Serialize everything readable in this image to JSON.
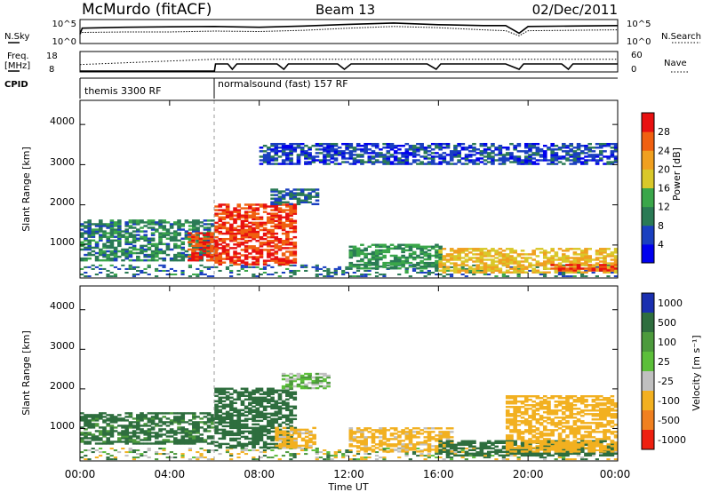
{
  "header": {
    "station": "McMurdo (fitACF)",
    "beam": "Beam 13",
    "date": "02/Dec/2011"
  },
  "noise_panel": {
    "left_label": "N.Sky",
    "left_ticks": [
      "10^5",
      "10^0"
    ],
    "right_label": "N.Search",
    "right_ticks": [
      "10^5",
      "10^0"
    ]
  },
  "freq_panel": {
    "left_label_1": "Freq.",
    "left_label_2": "[MHz]",
    "left_ticks": [
      "18",
      "8"
    ],
    "right_label": "Nave",
    "right_ticks": [
      "60",
      "0"
    ]
  },
  "cpid_panel": {
    "label": "CPID",
    "segments": [
      {
        "name": "themis 3300 RF",
        "start_hour": 0
      },
      {
        "name": "normalsound (fast) 157 RF",
        "start_hour": 6
      }
    ]
  },
  "power_panel": {
    "ylabel": "Slant Range [km]",
    "yticks": [
      "4000",
      "3000",
      "2000",
      "1000"
    ],
    "colorbar_label": "Power [dB]",
    "colorbar_ticks": [
      "28",
      "24",
      "20",
      "16",
      "12",
      "8",
      "4"
    ]
  },
  "velocity_panel": {
    "ylabel": "Slant Range [km]",
    "yticks": [
      "4000",
      "3000",
      "2000",
      "1000"
    ],
    "colorbar_label": "Velocity [m s⁻¹]",
    "colorbar_ticks": [
      "1000",
      "500",
      "100",
      "25",
      "-25",
      "-100",
      "-500",
      "-1000"
    ]
  },
  "x_axis": {
    "label": "Time UT",
    "ticks": [
      "00:00",
      "04:00",
      "08:00",
      "12:00",
      "16:00",
      "20:00",
      "00:00"
    ]
  },
  "colors": {
    "power_scale": [
      "#0000ee",
      "#1a3fc0",
      "#2a7a55",
      "#3aa64a",
      "#d9c82a",
      "#f0a020",
      "#f06010",
      "#e81010"
    ],
    "velocity_scale": [
      "#1a2fb0",
      "#2e6e3e",
      "#4c9a3c",
      "#5cbf3a",
      "#c0c0c0",
      "#f2b020",
      "#f08020",
      "#ee2010"
    ]
  },
  "chart_data": [
    {
      "type": "line",
      "title": "N.Sky / N.Search",
      "x_range_hours": [
        0,
        24
      ],
      "series": [
        {
          "name": "N.Sky",
          "x": [
            0,
            0.1,
            2,
            4,
            6,
            8,
            10,
            12,
            14,
            16,
            18,
            19,
            19.6,
            20,
            22,
            24
          ],
          "values": [
            2.0,
            3.4,
            3.6,
            3.7,
            3.8,
            3.6,
            3.9,
            4.3,
            4.6,
            4.2,
            4.0,
            4.0,
            2.2,
            3.8,
            3.9,
            4.0
          ]
        },
        {
          "name": "N.Search",
          "x": [
            0,
            0.1,
            2,
            4,
            6,
            8,
            10,
            12,
            14,
            16,
            18,
            19,
            19.6,
            20,
            22,
            24
          ],
          "values": [
            2.0,
            2.4,
            2.5,
            2.5,
            2.7,
            2.6,
            2.9,
            3.4,
            3.8,
            3.5,
            3.0,
            2.8,
            1.6,
            2.8,
            2.9,
            3.0
          ]
        }
      ]
    },
    {
      "type": "line",
      "title": "Freq / Nave",
      "x_range_hours": [
        0,
        24
      ],
      "series": [
        {
          "name": "Freq",
          "x": [
            0,
            6,
            6.05,
            6.6,
            6.8,
            7.0,
            8.8,
            9.1,
            9.3,
            11.5,
            11.8,
            12.1,
            15.5,
            15.9,
            16.1,
            19.0,
            19.6,
            19.8,
            21.5,
            21.8,
            22.0,
            24
          ],
          "values": [
            8,
            8,
            12,
            12,
            9,
            12,
            12,
            9,
            12,
            12,
            9,
            12,
            12,
            9,
            12,
            12,
            9,
            12,
            12,
            9,
            12,
            12
          ]
        },
        {
          "name": "Nave",
          "x": [
            0,
            6,
            24
          ],
          "values": [
            22,
            40,
            40
          ]
        }
      ]
    },
    {
      "type": "heatmap",
      "title": "Power [dB]",
      "xlabel": "Time UT",
      "ylabel": "Slant Range [km]",
      "x_range_hours": [
        0,
        24
      ],
      "ylim": [
        180,
        4600
      ],
      "colorbar_ticks": [
        4,
        8,
        12,
        16,
        20,
        24,
        28
      ],
      "features": [
        {
          "t_start": 0.0,
          "t_end": 6.0,
          "range_low": 600,
          "range_high": 1600,
          "typical_dB": 10
        },
        {
          "t_start": 4.8,
          "t_end": 6.0,
          "range_low": 600,
          "range_high": 1300,
          "typical_dB": 28
        },
        {
          "t_start": 6.0,
          "t_end": 9.5,
          "range_low": 500,
          "range_high": 2000,
          "typical_dB": 28
        },
        {
          "t_start": 8.5,
          "t_end": 10.5,
          "range_low": 2000,
          "range_high": 2400,
          "typical_dB": 8
        },
        {
          "t_start": 12.0,
          "t_end": 16.0,
          "range_low": 400,
          "range_high": 1000,
          "typical_dB": 12
        },
        {
          "t_start": 16.0,
          "t_end": 24.0,
          "range_low": 300,
          "range_high": 900,
          "typical_dB": 20
        },
        {
          "t_start": 21.0,
          "t_end": 24.0,
          "range_low": 350,
          "range_high": 500,
          "typical_dB": 28
        },
        {
          "t_start": 8.0,
          "t_end": 24.0,
          "range_low": 3000,
          "range_high": 3500,
          "typical_dB": 6
        }
      ]
    },
    {
      "type": "heatmap",
      "title": "Velocity [m s⁻¹]",
      "xlabel": "Time UT",
      "ylabel": "Slant Range [km]",
      "x_range_hours": [
        0,
        24
      ],
      "ylim": [
        180,
        4600
      ],
      "colorbar_ticks": [
        1000,
        500,
        100,
        25,
        -25,
        -100,
        -500,
        -1000
      ],
      "features": [
        {
          "t_start": 0.0,
          "t_end": 6.0,
          "range_low": 600,
          "range_high": 1400,
          "typical_ms": 150
        },
        {
          "t_start": 6.0,
          "t_end": 9.5,
          "range_low": 500,
          "range_high": 2000,
          "typical_ms": 200
        },
        {
          "t_start": 8.7,
          "t_end": 10.5,
          "range_low": 500,
          "range_high": 1000,
          "typical_ms": -150
        },
        {
          "t_start": 9.0,
          "t_end": 11.0,
          "range_low": 2000,
          "range_high": 2400,
          "typical_ms": 0
        },
        {
          "t_start": 12.0,
          "t_end": 16.5,
          "range_low": 400,
          "range_high": 1000,
          "typical_ms": -150
        },
        {
          "t_start": 16.0,
          "t_end": 24.0,
          "range_low": 300,
          "range_high": 700,
          "typical_ms": 200
        },
        {
          "t_start": 19.0,
          "t_end": 24.0,
          "range_low": 400,
          "range_high": 1800,
          "typical_ms": -200
        }
      ]
    }
  ]
}
